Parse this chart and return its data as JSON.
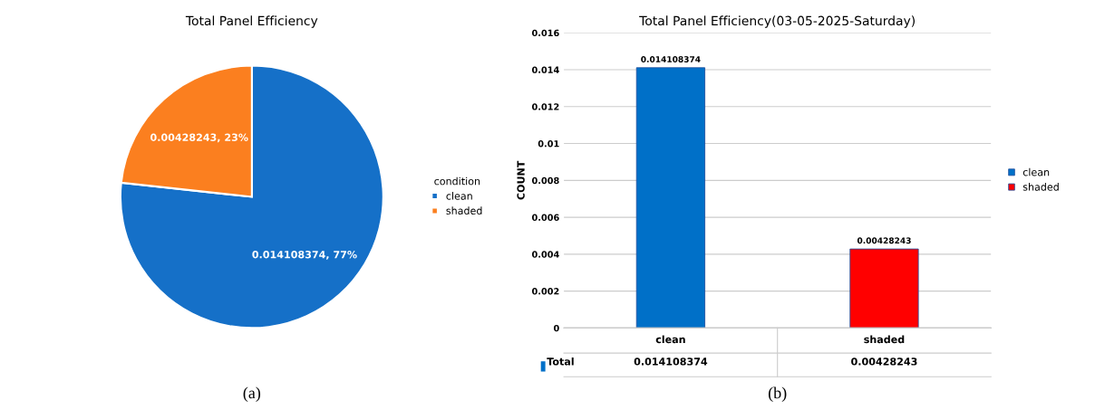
{
  "chart_data": [
    {
      "type": "pie",
      "title": "Total Panel Efficiency",
      "categories": [
        "clean",
        "shaded"
      ],
      "values": [
        0.014108374,
        0.00428243
      ],
      "colors": [
        "#1570c8",
        "#fb7f1f"
      ],
      "value_labels": [
        "0.014108374, 77%",
        "0.00428243, 23%"
      ],
      "legend": "right",
      "legend_title": "condition",
      "annotations": [
        "(a)"
      ]
    },
    {
      "type": "bar",
      "title": "Total Panel Efficiency(03-05-2025-Saturday)",
      "ylabel": "COUNT",
      "categories": [
        "clean",
        "shaded"
      ],
      "series": [
        {
          "name": "clean",
          "color": "#0070c8",
          "values": [
            0.014108374,
            null
          ],
          "value_labels": [
            "0.014108374",
            null
          ]
        },
        {
          "name": "shaded",
          "color": "#ff0000",
          "values": [
            null,
            0.00428243
          ],
          "value_labels": [
            null,
            "0.00428243"
          ]
        }
      ],
      "ylim": [
        0,
        0.016
      ],
      "yticks": [
        0,
        0.002,
        0.004,
        0.006,
        0.008,
        0.01,
        0.012,
        0.014,
        0.016
      ],
      "grid": "y",
      "legend": "right",
      "annotations": [
        "(b)",
        "Total"
      ]
    }
  ]
}
